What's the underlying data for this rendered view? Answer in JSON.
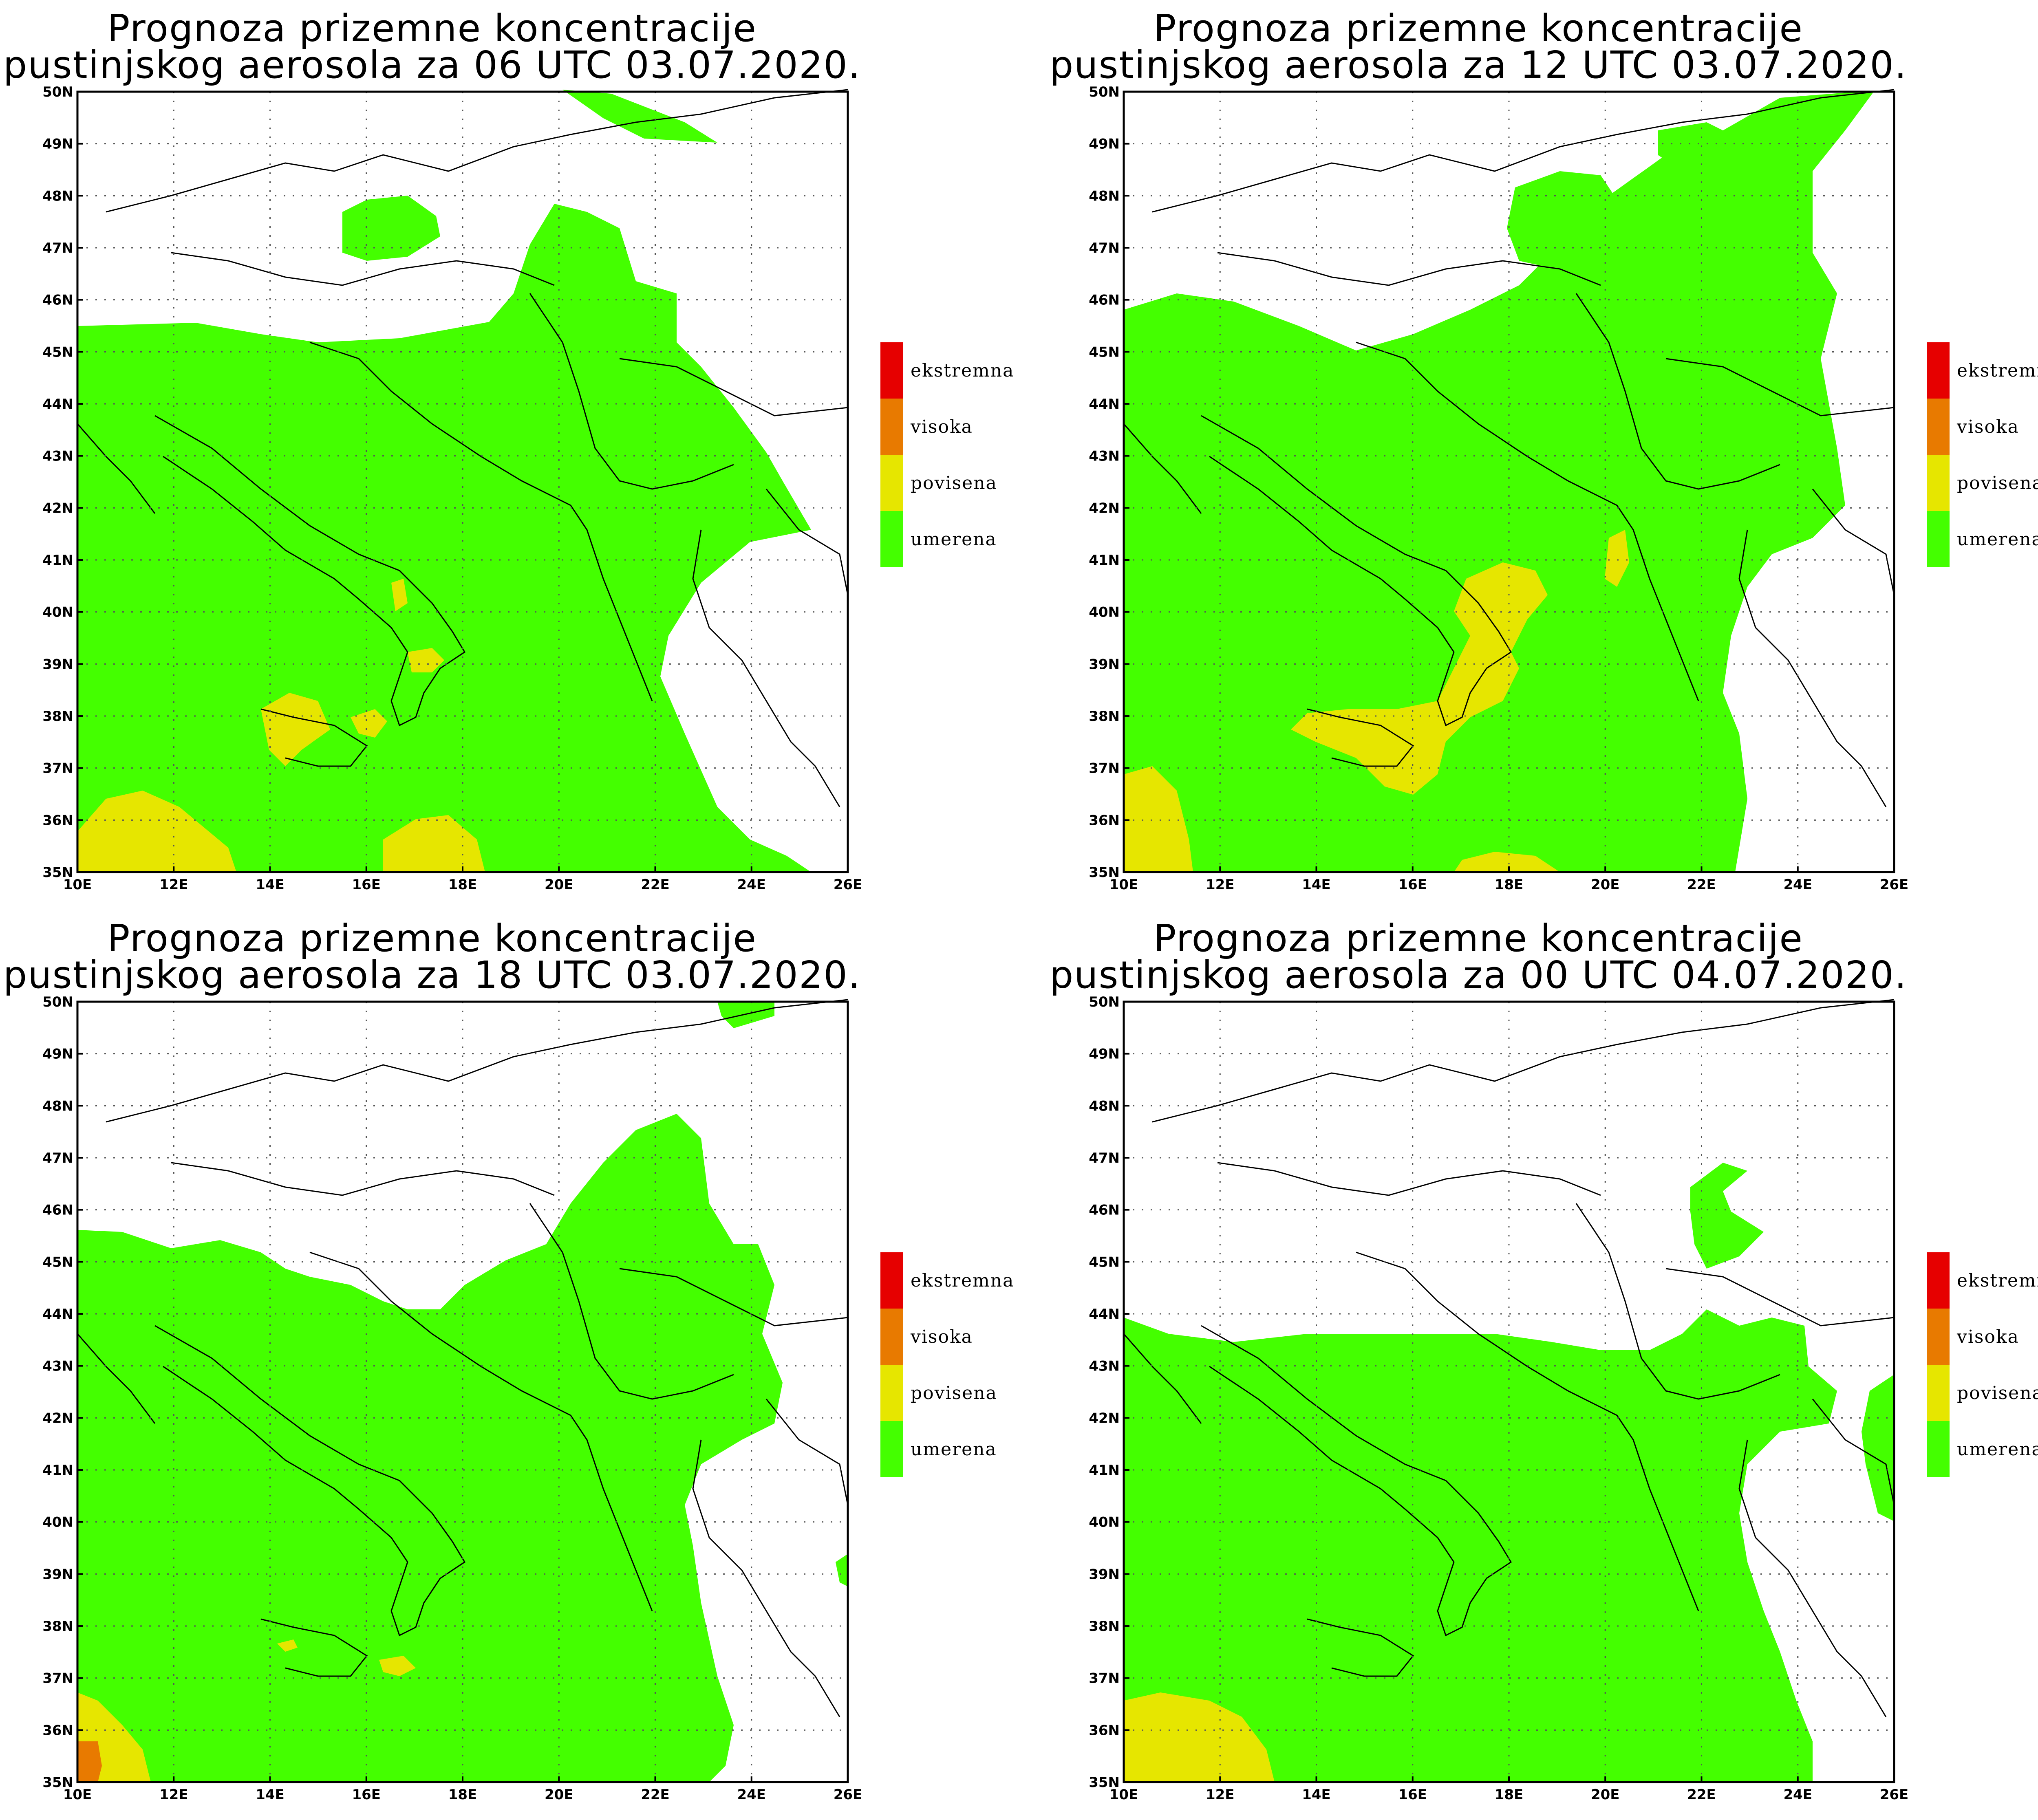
{
  "panels": [
    {
      "title_line1": "Prognoza prizemne koncentracije",
      "title_line2": "pustinjskog aerosola za 06 UTC 03.07.2020."
    },
    {
      "title_line1": "Prognoza prizemne koncentracije",
      "title_line2": "pustinjskog aerosola za 12 UTC 03.07.2020."
    },
    {
      "title_line1": "Prognoza prizemne koncentracije",
      "title_line2": "pustinjskog aerosola za 18 UTC 03.07.2020."
    },
    {
      "title_line1": "Prognoza prizemne koncentracije",
      "title_line2": "pustinjskog aerosola za 00 UTC 04.07.2020."
    }
  ],
  "legend": {
    "items": [
      {
        "label": "ekstremna",
        "color": "#e60000"
      },
      {
        "label": "visoka",
        "color": "#e87a00"
      },
      {
        "label": "povisena",
        "color": "#e6e600"
      },
      {
        "label": "umerena",
        "color": "#44ff00"
      }
    ]
  },
  "axes": {
    "lon_labels": [
      "10E",
      "12E",
      "14E",
      "16E",
      "18E",
      "20E",
      "22E",
      "24E",
      "26E"
    ],
    "lat_labels": [
      "35N",
      "36N",
      "37N",
      "38N",
      "39N",
      "40N",
      "41N",
      "42N",
      "43N",
      "44N",
      "45N",
      "46N",
      "47N",
      "48N",
      "49N",
      "50N"
    ],
    "lon_range": [
      10,
      26
    ],
    "lat_range": [
      35,
      50
    ]
  }
}
